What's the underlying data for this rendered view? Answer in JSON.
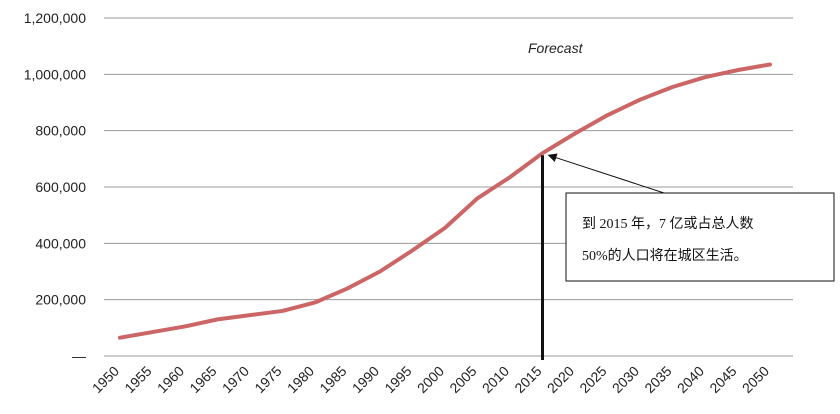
{
  "chart_data": {
    "type": "line",
    "title": "",
    "xlabel": "",
    "ylabel": "",
    "x": [
      1950,
      1955,
      1960,
      1965,
      1970,
      1975,
      1980,
      1985,
      1990,
      1995,
      2000,
      2005,
      2010,
      2015,
      2020,
      2025,
      2030,
      2035,
      2040,
      2045,
      2050
    ],
    "series": [
      {
        "values": [
          65000,
          85000,
          105000,
          130000,
          145000,
          160000,
          190000,
          240000,
          300000,
          375000,
          455000,
          560000,
          635000,
          720000,
          790000,
          855000,
          910000,
          955000,
          990000,
          1015000,
          1035000
        ],
        "color": "#cc6666"
      }
    ],
    "ylim": [
      0,
      1200000
    ],
    "y_ticks": [
      0,
      200000,
      400000,
      600000,
      800000,
      1000000,
      1200000
    ],
    "y_tick_labels": [
      "—",
      "200,000",
      "400,000",
      "600,000",
      "800,000",
      "1,000,000",
      "1,200,000"
    ],
    "x_tick_labels": [
      "1950",
      "1955",
      "1960",
      "1965",
      "1970",
      "1975",
      "1980",
      "1985",
      "1990",
      "1995",
      "2000",
      "2005",
      "2010",
      "2015",
      "2020",
      "2025",
      "2030",
      "2035",
      "2040",
      "2045",
      "2050"
    ],
    "grid": true,
    "forecast_label": "Forecast",
    "annotation": {
      "line1": "到 2015 年，7 亿或占总人数",
      "line2": "50%的人口将在城区生活。",
      "points_to_x": 2015,
      "points_to_y": 720000
    },
    "gridline_color": "#999999",
    "line_color": "#cc6666"
  }
}
